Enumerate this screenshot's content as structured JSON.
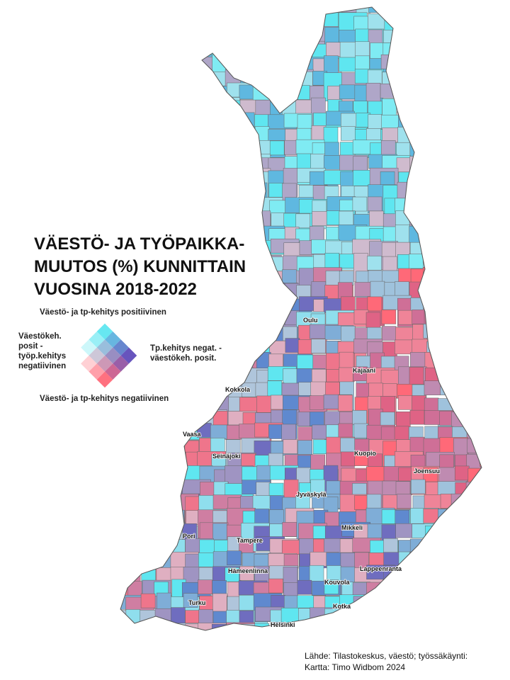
{
  "title": [
    "VÄESTÖ- JA TYÖPAIKKA-",
    "MUUTOS (%) KUNNITTAIN",
    "VUOSINA 2018-2022"
  ],
  "legend": {
    "top": "Väestö- ja tp-kehitys positiivinen",
    "left": [
      "Väestökeh.",
      "posit -",
      "työp.kehitys",
      "negatiivinen"
    ],
    "right": [
      "Tp.kehitys negat. -",
      "väestökeh. posit."
    ],
    "bottom": "Väestö- ja tp-kehitys negatiivinen"
  },
  "cities": [
    "Oulu",
    "Kajaani",
    "Kokkola",
    "Vaasa",
    "Kuopio",
    "Seinäjoki",
    "Joensuu",
    "Jyväskylä",
    "Pori",
    "Tampere",
    "Mikkeli",
    "Hämeenlinna",
    "Lappeenranta",
    "Kouvola",
    "Turku",
    "Kotka",
    "Helsinki"
  ],
  "source": [
    "Lähde: Tilastokeskus, väestö; työssäkäynti:",
    "Kartta: Timo Widbom 2024"
  ]
}
